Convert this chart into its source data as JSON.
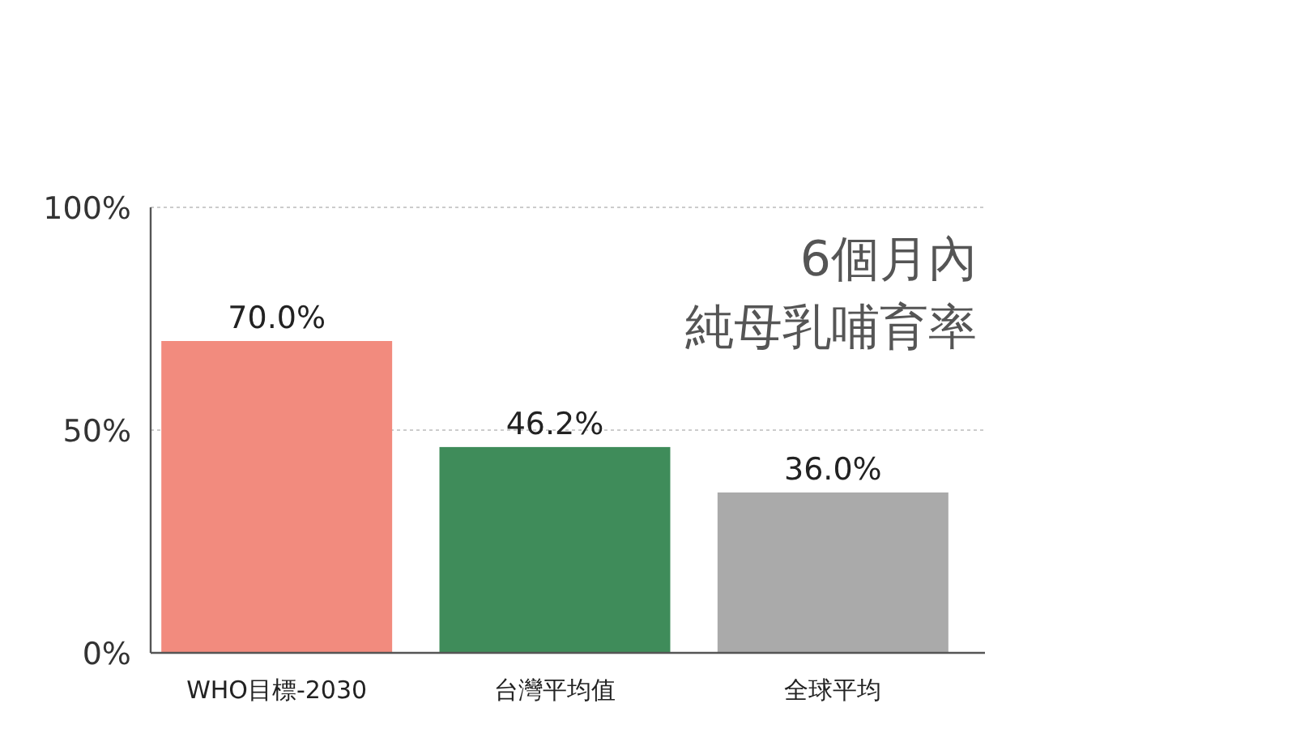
{
  "chart_data": {
    "type": "bar",
    "title": "6個月內",
    "subtitle": "純母乳哺育率",
    "categories": [
      "WHO目標-2030",
      "台灣平均值",
      "全球平均"
    ],
    "values": [
      70.0,
      46.2,
      36.0
    ],
    "colors": [
      "#f28b7e",
      "#3f8c5a",
      "#aaaaaa"
    ],
    "value_labels": [
      "70.0%",
      "46.2%",
      "36.0%"
    ],
    "ylim": [
      0,
      100
    ],
    "yticks": [
      {
        "value": 0,
        "label": "0%"
      },
      {
        "value": 50,
        "label": "50%"
      },
      {
        "value": 100,
        "label": "100%"
      }
    ],
    "grid": "y"
  }
}
